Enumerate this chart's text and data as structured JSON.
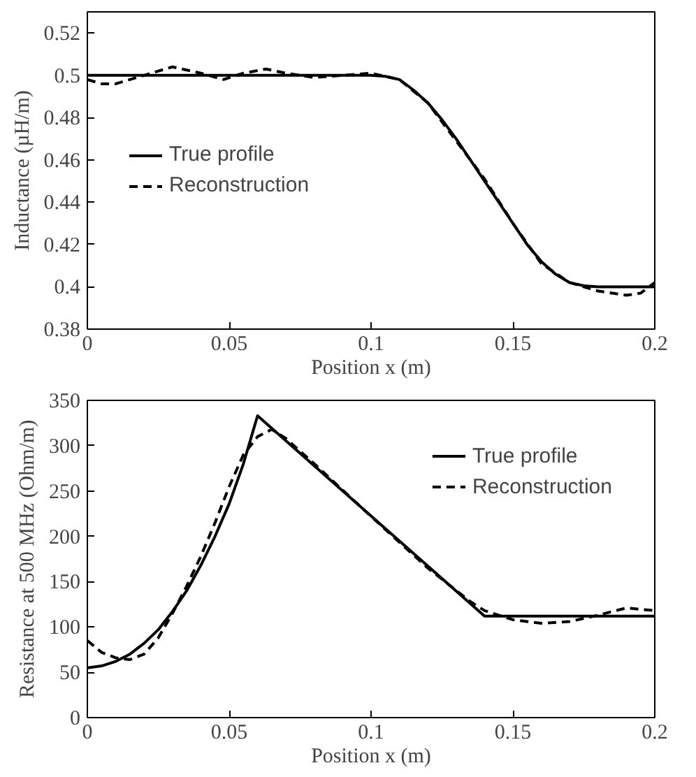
{
  "chart_data": [
    {
      "type": "line",
      "xlabel": "Position x (m)",
      "ylabel": "Inductance (µH/m)",
      "xlim": [
        0,
        0.2
      ],
      "xticks": [
        0,
        0.05,
        0.1,
        0.15,
        0.2
      ],
      "ylim": [
        0.38,
        0.53
      ],
      "yticks": [
        0.38,
        0.4,
        0.42,
        0.44,
        0.46,
        0.48,
        0.5,
        0.52
      ],
      "grid": false,
      "legend": "left",
      "series": [
        {
          "name": "True profile",
          "color": "#000000",
          "line_style": "solid",
          "x": [
            0,
            0.05,
            0.1,
            0.105,
            0.11,
            0.115,
            0.12,
            0.125,
            0.13,
            0.135,
            0.14,
            0.145,
            0.15,
            0.155,
            0.16,
            0.165,
            0.17,
            0.175,
            0.18,
            0.2
          ],
          "values": [
            0.5,
            0.5,
            0.5,
            0.4995,
            0.498,
            0.493,
            0.487,
            0.479,
            0.47,
            0.46,
            0.45,
            0.44,
            0.43,
            0.42,
            0.412,
            0.406,
            0.402,
            0.4005,
            0.4,
            0.4
          ]
        },
        {
          "name": "Reconstruction",
          "color": "#000000",
          "line_style": "dashed",
          "x": [
            0,
            0.005,
            0.01,
            0.015,
            0.02,
            0.03,
            0.04,
            0.048,
            0.055,
            0.063,
            0.07,
            0.08,
            0.09,
            0.1,
            0.11,
            0.12,
            0.13,
            0.14,
            0.15,
            0.16,
            0.17,
            0.175,
            0.18,
            0.19,
            0.195,
            0.2
          ],
          "values": [
            0.498,
            0.496,
            0.496,
            0.498,
            0.5,
            0.504,
            0.501,
            0.498,
            0.501,
            0.503,
            0.501,
            0.499,
            0.5,
            0.501,
            0.498,
            0.487,
            0.469,
            0.451,
            0.43,
            0.411,
            0.402,
            0.4,
            0.398,
            0.396,
            0.397,
            0.402
          ]
        }
      ]
    },
    {
      "type": "line",
      "xlabel": "Position x (m)",
      "ylabel": "Resistance at 500 MHz (Ohm/m)",
      "xlim": [
        0,
        0.2
      ],
      "xticks": [
        0,
        0.05,
        0.1,
        0.15,
        0.2
      ],
      "ylim": [
        0,
        350
      ],
      "yticks": [
        0,
        50,
        100,
        150,
        200,
        250,
        300,
        350
      ],
      "grid": false,
      "legend": "top right",
      "series": [
        {
          "name": "True profile",
          "color": "#000000",
          "line_style": "solid",
          "x": [
            0,
            0.005,
            0.01,
            0.015,
            0.02,
            0.025,
            0.03,
            0.035,
            0.04,
            0.045,
            0.05,
            0.055,
            0.06,
            0.14,
            0.2
          ],
          "values": [
            55,
            57,
            62,
            70,
            82,
            97,
            117,
            140,
            168,
            200,
            236,
            280,
            333,
            112,
            112
          ]
        },
        {
          "name": "Reconstruction",
          "color": "#000000",
          "line_style": "dashed",
          "x": [
            0,
            0.005,
            0.01,
            0.015,
            0.02,
            0.025,
            0.03,
            0.035,
            0.04,
            0.045,
            0.05,
            0.055,
            0.06,
            0.065,
            0.07,
            0.08,
            0.1,
            0.12,
            0.135,
            0.14,
            0.15,
            0.16,
            0.17,
            0.18,
            0.19,
            0.2
          ],
          "values": [
            85,
            72,
            66,
            64,
            70,
            88,
            115,
            145,
            178,
            215,
            255,
            290,
            310,
            318,
            308,
            280,
            222,
            165,
            128,
            118,
            108,
            104,
            106,
            113,
            121,
            118
          ]
        }
      ]
    }
  ]
}
